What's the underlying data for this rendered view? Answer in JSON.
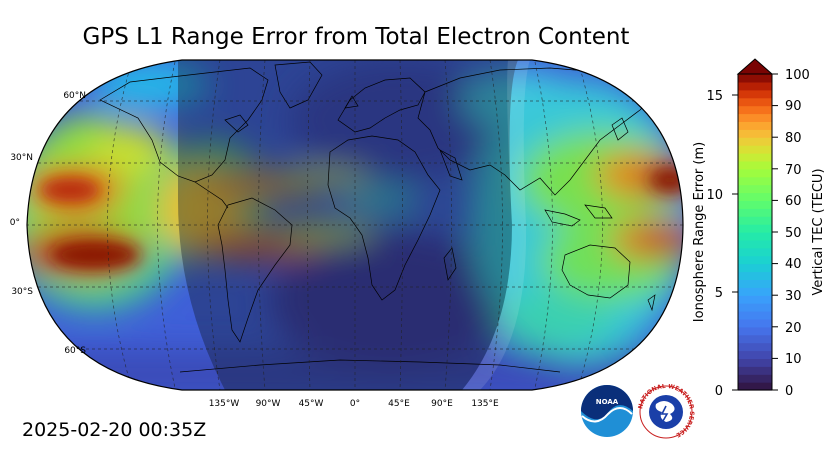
{
  "title": "GPS L1 Range Error from Total Electron Content",
  "timestamp": "2025-02-20 00:35Z",
  "map": {
    "projection": "Robinson",
    "lat_labels": [
      "60°N",
      "30°N",
      "0°",
      "30°S",
      "60°S"
    ],
    "lon_labels": [
      "135°W",
      "90°W",
      "45°W",
      "0°",
      "45°E",
      "90°E",
      "135°E"
    ],
    "graticule": "dashed",
    "night_shading": true
  },
  "colorbar": {
    "left_label": "Ionosphere Range Error (m)",
    "right_label": "Vertical TEC (TECU)",
    "left_ticks": [
      "0",
      "5",
      "10",
      "15"
    ],
    "right_ticks": [
      "0",
      "10",
      "20",
      "30",
      "40",
      "50",
      "60",
      "70",
      "80",
      "90",
      "100"
    ],
    "tec_range": [
      0,
      100
    ],
    "extend": "max",
    "colormap": "turbo"
  },
  "logos": {
    "noaa_text": "NOAA",
    "nws_text": "NATIONAL WEATHER SERVICE"
  }
}
